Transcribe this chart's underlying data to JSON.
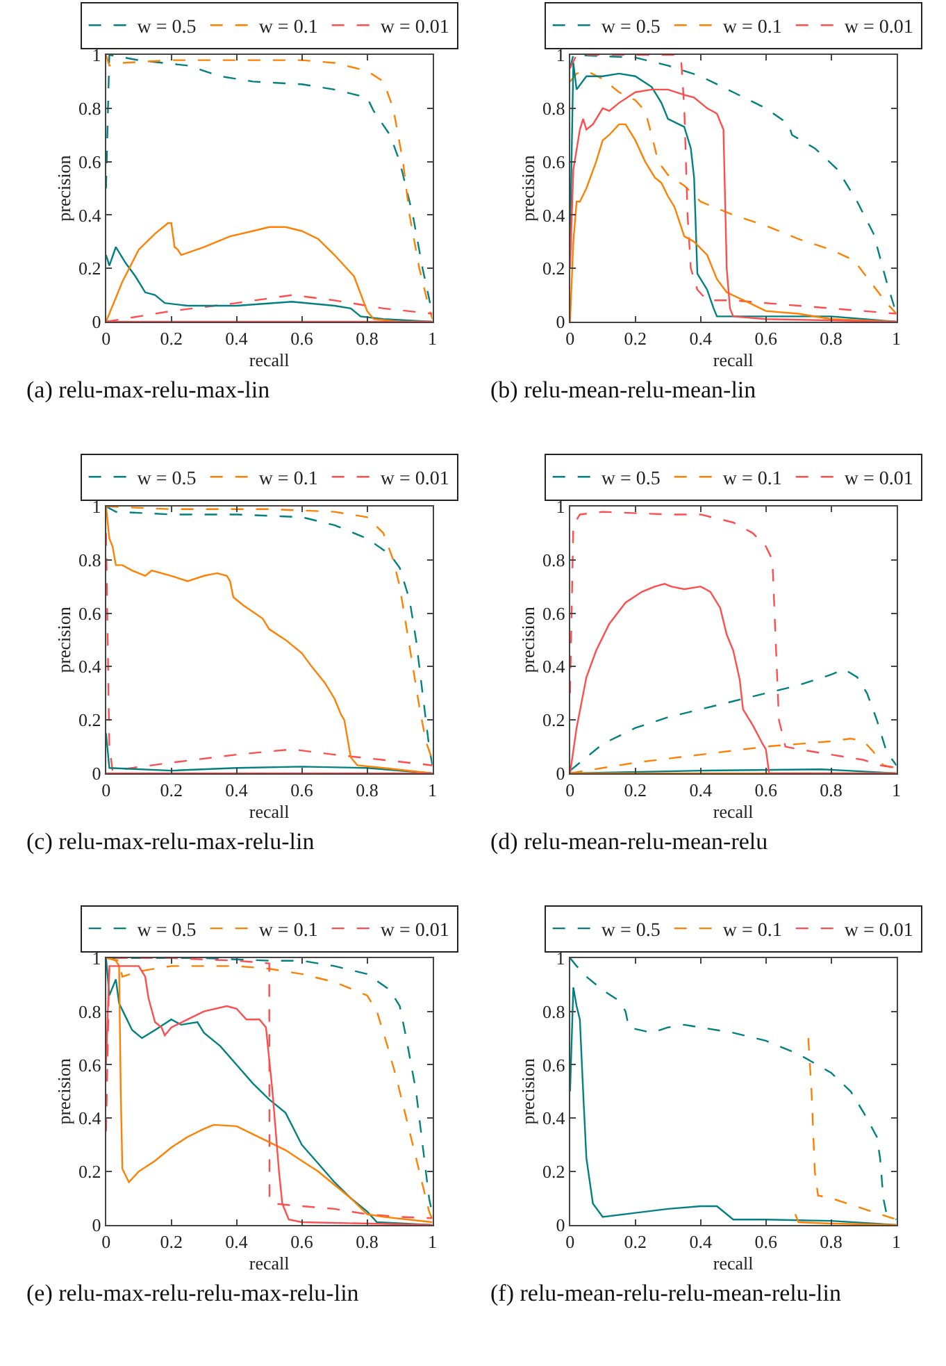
{
  "chart_data": [
    {
      "type": "line",
      "title": "(a) relu-max-relu-max-lin",
      "xlabel": "recall",
      "ylabel": "precision",
      "xlim": [
        0,
        1
      ],
      "ylim": [
        0,
        1
      ],
      "xticks": [
        0,
        0.2,
        0.4,
        0.6,
        0.8,
        1
      ],
      "yticks": [
        0,
        0.2,
        0.4,
        0.6,
        0.8,
        1
      ],
      "legend": "top",
      "series": [
        {
          "name": "w = 0.5",
          "color": "#008080",
          "line_style": "dashed",
          "x": [
            0,
            0.01,
            0.1,
            0.25,
            0.35,
            0.45,
            0.6,
            0.7,
            0.8,
            0.82,
            0.87,
            0.9,
            0.94,
            0.97,
            1
          ],
          "values": [
            0.5,
            1.0,
            0.98,
            0.96,
            0.92,
            0.9,
            0.89,
            0.87,
            0.84,
            0.79,
            0.7,
            0.6,
            0.4,
            0.2,
            0.03
          ]
        },
        {
          "name": "w = 0.1",
          "color": "#ff8000",
          "line_style": "dashed",
          "x": [
            0,
            0.01,
            0.05,
            0.2,
            0.6,
            0.7,
            0.8,
            0.85,
            0.88,
            0.91,
            0.93,
            0.96,
            0.99,
            1
          ],
          "values": [
            1.0,
            0.96,
            0.97,
            0.98,
            0.98,
            0.97,
            0.94,
            0.9,
            0.8,
            0.6,
            0.4,
            0.2,
            0.05,
            0.01
          ]
        },
        {
          "name": "w = 0.01",
          "color": "#ff4d4d",
          "line_style": "dashed",
          "x": [
            0,
            0.2,
            0.4,
            0.57,
            0.7,
            0.85,
            1
          ],
          "values": [
            0,
            0.04,
            0.07,
            0.1,
            0.08,
            0.05,
            0.03
          ]
        },
        {
          "color": "#008080",
          "line_style": "solid",
          "x": [
            0,
            0.01,
            0.03,
            0.06,
            0.09,
            0.12,
            0.15,
            0.18,
            0.25,
            0.4,
            0.57,
            0.7,
            0.75,
            0.78,
            0.85,
            1
          ],
          "values": [
            0.25,
            0.21,
            0.28,
            0.22,
            0.17,
            0.11,
            0.1,
            0.07,
            0.06,
            0.06,
            0.075,
            0.06,
            0.05,
            0.02,
            0.01,
            0
          ]
        },
        {
          "color": "#ff8000",
          "line_style": "solid",
          "x": [
            0,
            0.05,
            0.1,
            0.15,
            0.19,
            0.2,
            0.21,
            0.22,
            0.23,
            0.3,
            0.38,
            0.45,
            0.5,
            0.55,
            0.6,
            0.65,
            0.7,
            0.76,
            0.8,
            0.82,
            0.9,
            1
          ],
          "values": [
            0,
            0.15,
            0.27,
            0.33,
            0.37,
            0.37,
            0.28,
            0.27,
            0.25,
            0.28,
            0.32,
            0.34,
            0.355,
            0.355,
            0.34,
            0.31,
            0.25,
            0.17,
            0.04,
            0.01,
            0,
            0
          ]
        },
        {
          "color": "#ff4d4d",
          "line_style": "solid",
          "x": [
            0,
            1
          ],
          "values": [
            0,
            0
          ]
        }
      ]
    },
    {
      "type": "line",
      "title": "(b) relu-mean-relu-mean-lin",
      "xlabel": "recall",
      "ylabel": "precision",
      "xlim": [
        0,
        1
      ],
      "ylim": [
        0,
        1
      ],
      "xticks": [
        0,
        0.2,
        0.4,
        0.6,
        0.8,
        1
      ],
      "yticks": [
        0,
        0.2,
        0.4,
        0.6,
        0.8,
        1
      ],
      "legend": "top",
      "series": [
        {
          "name": "w = 0.5",
          "color": "#008080",
          "line_style": "dashed",
          "x": [
            0,
            0.01,
            0.2,
            0.3,
            0.4,
            0.5,
            0.6,
            0.67,
            0.68,
            0.75,
            0.82,
            0.88,
            0.93,
            0.97,
            1
          ],
          "values": [
            0.95,
            1.0,
            0.99,
            0.96,
            0.92,
            0.86,
            0.8,
            0.74,
            0.7,
            0.65,
            0.57,
            0.45,
            0.33,
            0.15,
            0.03
          ]
        },
        {
          "name": "w = 0.1",
          "color": "#ff8000",
          "line_style": "dashed",
          "x": [
            0,
            0.02,
            0.05,
            0.1,
            0.15,
            0.2,
            0.23,
            0.25,
            0.27,
            0.3,
            0.35,
            0.4,
            0.5,
            0.6,
            0.7,
            0.8,
            0.87,
            0.92,
            0.97,
            1
          ],
          "values": [
            0.9,
            0.93,
            0.94,
            0.91,
            0.86,
            0.83,
            0.79,
            0.7,
            0.6,
            0.55,
            0.51,
            0.45,
            0.4,
            0.36,
            0.31,
            0.27,
            0.23,
            0.15,
            0.07,
            0.03
          ]
        },
        {
          "name": "w = 0.01",
          "color": "#ff4d4d",
          "line_style": "dashed",
          "x": [
            0,
            0.02,
            0.33,
            0.34,
            0.35,
            0.36,
            0.37,
            0.39,
            0.42,
            0.5,
            0.7,
            1
          ],
          "values": [
            0.95,
            1.0,
            1.0,
            0.99,
            0.8,
            0.4,
            0.2,
            0.12,
            0.08,
            0.08,
            0.06,
            0.03
          ]
        },
        {
          "color": "#008080",
          "line_style": "solid",
          "x": [
            0,
            0.01,
            0.02,
            0.05,
            0.1,
            0.15,
            0.2,
            0.25,
            0.28,
            0.3,
            0.35,
            0.37,
            0.38,
            0.39,
            0.42,
            0.44,
            0.45,
            0.6,
            0.8,
            1
          ],
          "values": [
            0.3,
            0.97,
            0.87,
            0.92,
            0.92,
            0.93,
            0.92,
            0.88,
            0.82,
            0.76,
            0.73,
            0.65,
            0.54,
            0.18,
            0.12,
            0.05,
            0.02,
            0.02,
            0.02,
            0
          ]
        },
        {
          "color": "#ff8000",
          "line_style": "solid",
          "x": [
            0,
            0.01,
            0.02,
            0.03,
            0.05,
            0.08,
            0.1,
            0.12,
            0.15,
            0.17,
            0.2,
            0.23,
            0.26,
            0.28,
            0.3,
            0.32,
            0.35,
            0.38,
            0.42,
            0.45,
            0.48,
            0.55,
            0.6,
            0.7,
            0.8,
            1
          ],
          "values": [
            0,
            0.3,
            0.45,
            0.45,
            0.5,
            0.6,
            0.68,
            0.7,
            0.74,
            0.74,
            0.68,
            0.6,
            0.54,
            0.52,
            0.47,
            0.43,
            0.32,
            0.3,
            0.25,
            0.16,
            0.11,
            0.07,
            0.04,
            0.03,
            0.01,
            0
          ]
        },
        {
          "color": "#ff4d4d",
          "line_style": "solid",
          "x": [
            0,
            0.01,
            0.03,
            0.04,
            0.05,
            0.07,
            0.1,
            0.12,
            0.15,
            0.2,
            0.25,
            0.3,
            0.35,
            0.38,
            0.42,
            0.45,
            0.47,
            0.48,
            0.49,
            0.5,
            0.6,
            1
          ],
          "values": [
            0.2,
            0.57,
            0.72,
            0.76,
            0.72,
            0.74,
            0.8,
            0.79,
            0.82,
            0.86,
            0.87,
            0.87,
            0.85,
            0.84,
            0.8,
            0.78,
            0.72,
            0.2,
            0.05,
            0.02,
            0.01,
            0
          ]
        }
      ]
    },
    {
      "type": "line",
      "title": "(c) relu-max-relu-max-relu-lin",
      "xlabel": "recall",
      "ylabel": "precision",
      "xlim": [
        0,
        1
      ],
      "ylim": [
        0,
        1
      ],
      "xticks": [
        0,
        0.2,
        0.4,
        0.6,
        0.8,
        1
      ],
      "yticks": [
        0,
        0.2,
        0.4,
        0.6,
        0.8,
        1
      ],
      "legend": "top",
      "series": [
        {
          "name": "w = 0.5",
          "color": "#008080",
          "line_style": "dashed",
          "x": [
            0,
            0.03,
            0.2,
            0.4,
            0.6,
            0.7,
            0.8,
            0.87,
            0.9,
            0.93,
            0.95,
            0.97,
            0.99,
            1
          ],
          "values": [
            1.0,
            0.98,
            0.97,
            0.97,
            0.96,
            0.93,
            0.88,
            0.82,
            0.77,
            0.65,
            0.5,
            0.3,
            0.1,
            0.03
          ]
        },
        {
          "name": "w = 0.1",
          "color": "#ff8000",
          "line_style": "dashed",
          "x": [
            0,
            0.2,
            0.5,
            0.7,
            0.8,
            0.85,
            0.88,
            0.9,
            0.92,
            0.94,
            0.96,
            0.98,
            1
          ],
          "values": [
            1.0,
            0.99,
            0.99,
            0.98,
            0.96,
            0.9,
            0.8,
            0.7,
            0.55,
            0.4,
            0.25,
            0.12,
            0.05
          ]
        },
        {
          "name": "w = 0.01",
          "color": "#ff4d4d",
          "line_style": "dashed",
          "x": [
            0,
            0.005,
            0.01,
            0.02,
            0.2,
            0.4,
            0.57,
            0.7,
            0.85,
            1
          ],
          "values": [
            0.9,
            0.5,
            0.1,
            0.01,
            0.04,
            0.07,
            0.09,
            0.07,
            0.05,
            0.03
          ]
        },
        {
          "color": "#008080",
          "line_style": "solid",
          "x": [
            0,
            0.01,
            0.2,
            0.4,
            0.6,
            0.8,
            1
          ],
          "values": [
            0.15,
            0.02,
            0.01,
            0.02,
            0.025,
            0.02,
            0
          ]
        },
        {
          "color": "#ff8000",
          "line_style": "solid",
          "x": [
            0,
            0.01,
            0.02,
            0.03,
            0.05,
            0.08,
            0.1,
            0.12,
            0.14,
            0.2,
            0.25,
            0.3,
            0.34,
            0.37,
            0.38,
            0.39,
            0.42,
            0.48,
            0.5,
            0.55,
            0.6,
            0.63,
            0.67,
            0.7,
            0.72,
            0.73,
            0.75,
            0.77,
            0.85,
            1
          ],
          "values": [
            1.0,
            0.88,
            0.85,
            0.78,
            0.78,
            0.76,
            0.75,
            0.74,
            0.76,
            0.74,
            0.72,
            0.74,
            0.75,
            0.74,
            0.72,
            0.66,
            0.63,
            0.58,
            0.54,
            0.5,
            0.45,
            0.4,
            0.34,
            0.28,
            0.22,
            0.2,
            0.06,
            0.03,
            0.02,
            0
          ]
        },
        {
          "color": "#ff4d4d",
          "line_style": "solid",
          "x": [
            0,
            1
          ],
          "values": [
            0,
            0
          ]
        }
      ]
    },
    {
      "type": "line",
      "title": "(d) relu-mean-relu-mean-relu",
      "xlabel": "recall",
      "ylabel": "precision",
      "xlim": [
        0,
        1
      ],
      "ylim": [
        0,
        1
      ],
      "xticks": [
        0,
        0.2,
        0.4,
        0.6,
        0.8,
        1
      ],
      "yticks": [
        0,
        0.2,
        0.4,
        0.6,
        0.8,
        1
      ],
      "legend": "top",
      "series": [
        {
          "name": "w = 0.5",
          "color": "#008080",
          "line_style": "dashed",
          "x": [
            0,
            0.05,
            0.1,
            0.2,
            0.3,
            0.4,
            0.5,
            0.6,
            0.7,
            0.8,
            0.84,
            0.88,
            0.91,
            0.94,
            0.97,
            1
          ],
          "values": [
            0.01,
            0.06,
            0.11,
            0.17,
            0.21,
            0.24,
            0.27,
            0.3,
            0.33,
            0.37,
            0.39,
            0.36,
            0.3,
            0.2,
            0.08,
            0.03
          ]
        },
        {
          "name": "w = 0.1",
          "color": "#ff8000",
          "line_style": "dashed",
          "x": [
            0,
            0.2,
            0.4,
            0.6,
            0.8,
            0.86,
            0.9,
            0.93,
            0.96,
            1
          ],
          "values": [
            0,
            0.04,
            0.07,
            0.1,
            0.12,
            0.13,
            0.12,
            0.08,
            0.03,
            0.02
          ]
        },
        {
          "name": "w = 0.01",
          "color": "#ff4d4d",
          "line_style": "dashed",
          "x": [
            0,
            0.01,
            0.03,
            0.1,
            0.3,
            0.4,
            0.5,
            0.56,
            0.6,
            0.62,
            0.63,
            0.64,
            0.66,
            0.7,
            0.8,
            0.9,
            0.95,
            1
          ],
          "values": [
            0.3,
            0.93,
            0.97,
            0.98,
            0.97,
            0.97,
            0.94,
            0.9,
            0.85,
            0.8,
            0.5,
            0.2,
            0.1,
            0.09,
            0.07,
            0.05,
            0.03,
            0.02
          ]
        },
        {
          "color": "#008080",
          "line_style": "solid",
          "x": [
            0,
            0.4,
            0.77,
            0.85,
            1
          ],
          "values": [
            0,
            0.01,
            0.015,
            0.01,
            0
          ]
        },
        {
          "color": "#ff8000",
          "line_style": "solid",
          "x": [
            0,
            1
          ],
          "values": [
            0,
            0
          ]
        },
        {
          "color": "#ff4d4d",
          "line_style": "solid",
          "x": [
            0,
            0.02,
            0.05,
            0.08,
            0.12,
            0.17,
            0.22,
            0.26,
            0.29,
            0.31,
            0.35,
            0.4,
            0.43,
            0.46,
            0.48,
            0.5,
            0.52,
            0.53,
            0.56,
            0.59,
            0.6,
            0.61,
            1
          ],
          "values": [
            0,
            0.17,
            0.36,
            0.46,
            0.56,
            0.64,
            0.68,
            0.7,
            0.71,
            0.7,
            0.69,
            0.7,
            0.68,
            0.62,
            0.52,
            0.46,
            0.35,
            0.24,
            0.18,
            0.11,
            0.09,
            0,
            0
          ]
        }
      ]
    },
    {
      "type": "line",
      "title": "(e) relu-max-relu-relu-max-relu-lin",
      "xlabel": "recall",
      "ylabel": "precision",
      "xlim": [
        0,
        1
      ],
      "ylim": [
        0,
        1
      ],
      "xticks": [
        0,
        0.2,
        0.4,
        0.6,
        0.8,
        1
      ],
      "yticks": [
        0,
        0.2,
        0.4,
        0.6,
        0.8,
        1
      ],
      "legend": "top",
      "series": [
        {
          "name": "w = 0.5",
          "color": "#008080",
          "line_style": "dashed",
          "x": [
            0,
            0.1,
            0.3,
            0.5,
            0.6,
            0.7,
            0.8,
            0.87,
            0.9,
            0.92,
            0.95,
            0.97,
            0.99,
            1
          ],
          "values": [
            1.0,
            1.0,
            1.0,
            0.99,
            0.99,
            0.97,
            0.94,
            0.88,
            0.82,
            0.7,
            0.5,
            0.3,
            0.1,
            0.04
          ]
        },
        {
          "name": "w = 0.1",
          "color": "#ff8000",
          "line_style": "dashed",
          "x": [
            0,
            0.04,
            0.05,
            0.1,
            0.2,
            0.4,
            0.5,
            0.6,
            0.7,
            0.8,
            0.83,
            0.86,
            0.89,
            0.92,
            0.95,
            0.97,
            0.99,
            1
          ],
          "values": [
            1.0,
            0.99,
            0.93,
            0.95,
            0.97,
            0.97,
            0.96,
            0.94,
            0.91,
            0.86,
            0.8,
            0.68,
            0.55,
            0.4,
            0.25,
            0.15,
            0.05,
            0.02
          ]
        },
        {
          "name": "w = 0.01",
          "color": "#ff4d4d",
          "line_style": "dashed",
          "x": [
            0,
            0.01,
            0.03,
            0.2,
            0.4,
            0.5,
            0.501,
            0.51,
            0.6,
            0.7,
            0.8,
            0.9,
            1
          ],
          "values": [
            0.35,
            0.97,
            1.0,
            1.0,
            0.99,
            0.98,
            0.1,
            0.08,
            0.07,
            0.06,
            0.04,
            0.03,
            0.025
          ]
        },
        {
          "color": "#008080",
          "line_style": "solid",
          "x": [
            0,
            0.01,
            0.03,
            0.04,
            0.06,
            0.08,
            0.11,
            0.15,
            0.2,
            0.23,
            0.28,
            0.3,
            0.35,
            0.4,
            0.45,
            0.5,
            0.55,
            0.6,
            0.65,
            0.7,
            0.75,
            0.8,
            0.83,
            1
          ],
          "values": [
            1.0,
            0.86,
            0.92,
            0.83,
            0.78,
            0.73,
            0.7,
            0.73,
            0.77,
            0.75,
            0.76,
            0.72,
            0.67,
            0.6,
            0.53,
            0.47,
            0.42,
            0.3,
            0.23,
            0.16,
            0.1,
            0.05,
            0.01,
            0
          ]
        },
        {
          "color": "#ff8000",
          "line_style": "solid",
          "x": [
            0,
            0.01,
            0.03,
            0.04,
            0.045,
            0.05,
            0.07,
            0.1,
            0.15,
            0.2,
            0.25,
            0.3,
            0.33,
            0.4,
            0.45,
            0.5,
            0.55,
            0.6,
            0.65,
            0.7,
            0.75,
            0.8,
            0.85,
            1
          ],
          "values": [
            1.0,
            1.0,
            0.99,
            0.97,
            0.5,
            0.21,
            0.16,
            0.2,
            0.24,
            0.29,
            0.33,
            0.36,
            0.375,
            0.37,
            0.34,
            0.31,
            0.28,
            0.24,
            0.2,
            0.15,
            0.1,
            0.04,
            0.03,
            0.01
          ]
        },
        {
          "color": "#ff4d4d",
          "line_style": "solid",
          "x": [
            0,
            0.01,
            0.1,
            0.12,
            0.13,
            0.15,
            0.17,
            0.18,
            0.2,
            0.25,
            0.3,
            0.37,
            0.4,
            0.43,
            0.47,
            0.49,
            0.51,
            0.53,
            0.54,
            0.56,
            0.6,
            1
          ],
          "values": [
            0.6,
            0.97,
            0.97,
            0.93,
            0.85,
            0.76,
            0.74,
            0.71,
            0.74,
            0.77,
            0.8,
            0.82,
            0.81,
            0.77,
            0.77,
            0.74,
            0.5,
            0.2,
            0.08,
            0.02,
            0.01,
            0
          ]
        }
      ]
    },
    {
      "type": "line",
      "title": "(f) relu-mean-relu-relu-mean-relu-lin",
      "xlabel": "recall",
      "ylabel": "precision",
      "xlim": [
        0,
        1
      ],
      "ylim": [
        0,
        1
      ],
      "xticks": [
        0,
        0.2,
        0.4,
        0.6,
        0.8,
        1
      ],
      "yticks": [
        0,
        0.2,
        0.4,
        0.6,
        0.8,
        1
      ],
      "legend": "top",
      "series": [
        {
          "name": "w = 0.5",
          "color": "#008080",
          "line_style": "dashed",
          "x": [
            0,
            0.02,
            0.05,
            0.1,
            0.15,
            0.17,
            0.18,
            0.25,
            0.3,
            0.35,
            0.4,
            0.5,
            0.6,
            0.7,
            0.8,
            0.86,
            0.9,
            0.94,
            0.95,
            0.96,
            0.97,
            1
          ],
          "values": [
            1.0,
            0.97,
            0.93,
            0.88,
            0.84,
            0.8,
            0.74,
            0.72,
            0.74,
            0.75,
            0.74,
            0.72,
            0.69,
            0.64,
            0.57,
            0.5,
            0.42,
            0.33,
            0.25,
            0.1,
            0.04,
            0.02
          ]
        },
        {
          "name": "w = 0.1",
          "color": "#ff8000",
          "line_style": "dashed",
          "x": [
            0.73,
            0.74,
            0.75,
            0.76,
            0.8,
            0.9,
            1
          ],
          "values": [
            0.7,
            0.5,
            0.2,
            0.11,
            0.1,
            0.06,
            0.02
          ]
        },
        {
          "name": "w = 0.01",
          "color": "#ff4d4d",
          "line_style": "dashed"
        },
        {
          "color": "#008080",
          "line_style": "solid",
          "x": [
            0,
            0.01,
            0.02,
            0.03,
            0.04,
            0.05,
            0.07,
            0.1,
            0.2,
            0.3,
            0.4,
            0.45,
            0.5,
            0.6,
            0.8,
            1
          ],
          "values": [
            0.5,
            0.89,
            0.82,
            0.77,
            0.5,
            0.25,
            0.08,
            0.03,
            0.045,
            0.06,
            0.07,
            0.07,
            0.02,
            0.02,
            0.015,
            0
          ]
        },
        {
          "color": "#ff8000",
          "line_style": "solid",
          "x": [
            0.69,
            0.7,
            0.8,
            1
          ],
          "values": [
            0.04,
            0.01,
            0.005,
            0
          ]
        }
      ]
    }
  ]
}
